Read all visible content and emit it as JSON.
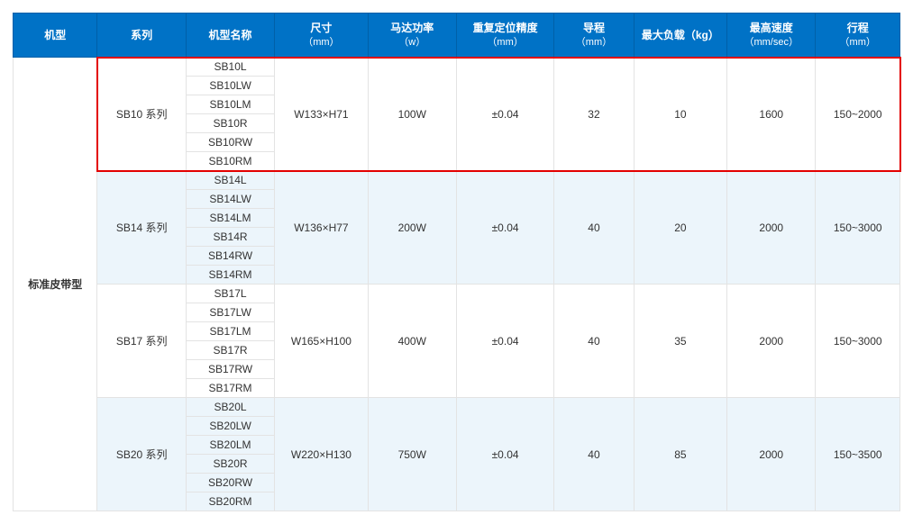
{
  "columns": [
    {
      "label": "机型",
      "sub": ""
    },
    {
      "label": "系列",
      "sub": ""
    },
    {
      "label": "机型名称",
      "sub": ""
    },
    {
      "label": "尺寸",
      "sub": "（mm）"
    },
    {
      "label": "马达功率",
      "sub": "（w）"
    },
    {
      "label": "重复定位精度",
      "sub": "（mm）"
    },
    {
      "label": "导程",
      "sub": "（mm）"
    },
    {
      "label": "最大负载（kg）",
      "sub": ""
    },
    {
      "label": "最高速度",
      "sub": "（mm/sec）"
    },
    {
      "label": "行程",
      "sub": "（mm）"
    }
  ],
  "category": "标准皮带型",
  "series": [
    {
      "name": "SB10 系列",
      "alt": false,
      "highlighted": true,
      "models": [
        "SB10L",
        "SB10LW",
        "SB10LM",
        "SB10R",
        "SB10RW",
        "SB10RM"
      ],
      "dim": "W133×H71",
      "power": "100W",
      "accuracy": "±0.04",
      "lead": "32",
      "load": "10",
      "speed": "1600",
      "stroke": "150~2000"
    },
    {
      "name": "SB14 系列",
      "alt": true,
      "highlighted": false,
      "models": [
        "SB14L",
        "SB14LW",
        "SB14LM",
        "SB14R",
        "SB14RW",
        "SB14RM"
      ],
      "dim": "W136×H77",
      "power": "200W",
      "accuracy": "±0.04",
      "lead": "40",
      "load": "20",
      "speed": "2000",
      "stroke": "150~3000"
    },
    {
      "name": "SB17 系列",
      "alt": false,
      "highlighted": false,
      "models": [
        "SB17L",
        "SB17LW",
        "SB17LM",
        "SB17R",
        "SB17RW",
        "SB17RM"
      ],
      "dim": "W165×H100",
      "power": "400W",
      "accuracy": "±0.04",
      "lead": "40",
      "load": "35",
      "speed": "2000",
      "stroke": "150~3000"
    },
    {
      "name": "SB20 系列",
      "alt": true,
      "highlighted": false,
      "models": [
        "SB20L",
        "SB20LW",
        "SB20LM",
        "SB20R",
        "SB20RW",
        "SB20RM"
      ],
      "dim": "W220×H130",
      "power": "750W",
      "accuracy": "±0.04",
      "lead": "40",
      "load": "85",
      "speed": "2000",
      "stroke": "150~3500"
    }
  ],
  "colors": {
    "header_bg": "#0072c6",
    "header_border": "#0060a8",
    "cell_border": "#e3e3e3",
    "alt_bg": "#ecf5fb",
    "highlight_border": "#e30000"
  }
}
